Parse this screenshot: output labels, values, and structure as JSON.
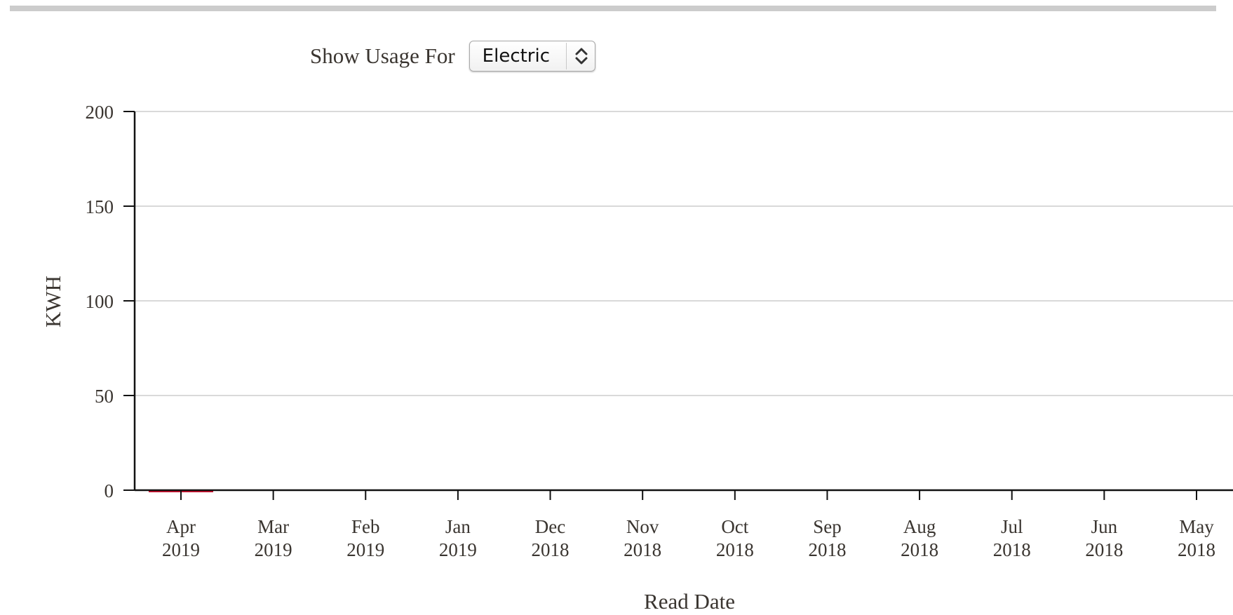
{
  "controls": {
    "usage_label": "Show Usage For",
    "usage_select_value": "Electric"
  },
  "colors": {
    "bar": "#c8102e",
    "grid": "#d9d9d9",
    "axis": "#111111",
    "text": "#3a3530",
    "top_bar": "#cccccc"
  },
  "chart_data": {
    "type": "bar",
    "title": "",
    "xlabel": "Read Date",
    "ylabel": "KWH",
    "ylim": [
      0,
      200
    ],
    "yticks": [
      0,
      50,
      100,
      150,
      200
    ],
    "grid": true,
    "categories": [
      {
        "month": "Apr",
        "year": "2019"
      },
      {
        "month": "Mar",
        "year": "2019"
      },
      {
        "month": "Feb",
        "year": "2019"
      },
      {
        "month": "Jan",
        "year": "2019"
      },
      {
        "month": "Dec",
        "year": "2018"
      },
      {
        "month": "Nov",
        "year": "2018"
      },
      {
        "month": "Oct",
        "year": "2018"
      },
      {
        "month": "Sep",
        "year": "2018"
      },
      {
        "month": "Aug",
        "year": "2018"
      },
      {
        "month": "Jul",
        "year": "2018"
      },
      {
        "month": "Jun",
        "year": "2018"
      },
      {
        "month": "May",
        "year": "2018"
      }
    ],
    "values": [
      0.5,
      0,
      0,
      0,
      0,
      0,
      0,
      0,
      0,
      0,
      0,
      0
    ]
  }
}
